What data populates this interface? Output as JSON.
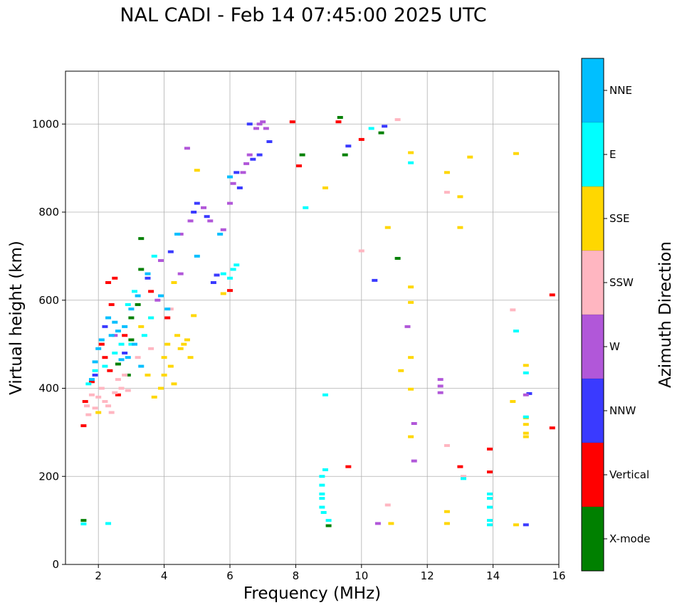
{
  "chart_data": {
    "type": "scatter",
    "title": "NAL CADI - Feb 14 07:45:00 2025 UTC",
    "xlabel": "Frequency (MHz)",
    "ylabel": "Virtual height (km)",
    "xlim": [
      1,
      16
    ],
    "ylim": [
      0,
      1120
    ],
    "xticks": [
      2,
      4,
      6,
      8,
      10,
      12,
      14,
      16
    ],
    "yticks": [
      0,
      200,
      400,
      600,
      800,
      1000
    ],
    "grid": true,
    "colorbar": {
      "label": "Azimuth Direction",
      "categories": [
        "X-mode",
        "Vertical",
        "NNW",
        "W",
        "SSW",
        "SSE",
        "E",
        "NNE"
      ],
      "colors": [
        "#008000",
        "#ff0000",
        "#3a3aff",
        "#b157d9",
        "#ffb6c1",
        "#ffd700",
        "#00ffff",
        "#00bfff"
      ]
    },
    "series": [
      {
        "name": "X-mode",
        "points": [
          [
            1.55,
            100
          ],
          [
            3.3,
            740
          ],
          [
            3.3,
            670
          ],
          [
            2.9,
            430
          ],
          [
            3.0,
            560
          ],
          [
            9.35,
            1015
          ],
          [
            10.6,
            980
          ],
          [
            11.1,
            695
          ],
          [
            9.0,
            88
          ],
          [
            9.5,
            930
          ],
          [
            8.2,
            930
          ],
          [
            3.0,
            510
          ],
          [
            2.6,
            455
          ],
          [
            3.2,
            590
          ]
        ]
      },
      {
        "name": "Vertical",
        "points": [
          [
            1.55,
            315
          ],
          [
            1.6,
            370
          ],
          [
            2.2,
            470
          ],
          [
            2.35,
            440
          ],
          [
            2.3,
            640
          ],
          [
            2.5,
            650
          ],
          [
            2.6,
            385
          ],
          [
            7.9,
            1005
          ],
          [
            9.3,
            1005
          ],
          [
            9.6,
            222
          ],
          [
            10.0,
            965
          ],
          [
            8.1,
            905
          ],
          [
            13.0,
            222
          ],
          [
            13.9,
            210
          ],
          [
            13.9,
            262
          ],
          [
            15.8,
            612
          ],
          [
            15.8,
            310
          ],
          [
            6.0,
            622
          ],
          [
            2.8,
            520
          ],
          [
            3.6,
            620
          ],
          [
            1.8,
            415
          ],
          [
            2.1,
            500
          ],
          [
            2.4,
            590
          ],
          [
            4.1,
            560
          ]
        ]
      },
      {
        "name": "NNW",
        "points": [
          [
            5.6,
            657
          ],
          [
            5.5,
            640
          ],
          [
            6.2,
            890
          ],
          [
            6.3,
            855
          ],
          [
            6.9,
            930
          ],
          [
            7.2,
            960
          ],
          [
            10.4,
            645
          ],
          [
            10.7,
            995
          ],
          [
            15.1,
            388
          ],
          [
            15.0,
            90
          ],
          [
            6.6,
            1000
          ],
          [
            4.9,
            800
          ],
          [
            5.3,
            790
          ],
          [
            4.2,
            710
          ],
          [
            3.5,
            650
          ],
          [
            2.8,
            480
          ],
          [
            2.2,
            540
          ],
          [
            5.0,
            820
          ],
          [
            6.7,
            920
          ],
          [
            9.6,
            950
          ],
          [
            1.9,
            430
          ]
        ]
      },
      {
        "name": "W",
        "points": [
          [
            6.6,
            930
          ],
          [
            6.5,
            910
          ],
          [
            6.8,
            990
          ],
          [
            7.0,
            1005
          ],
          [
            6.4,
            890
          ],
          [
            6.1,
            865
          ],
          [
            5.2,
            810
          ],
          [
            5.4,
            780
          ],
          [
            4.8,
            780
          ],
          [
            4.5,
            750
          ],
          [
            3.9,
            690
          ],
          [
            4.7,
            945
          ],
          [
            11.4,
            540
          ],
          [
            11.6,
            320
          ],
          [
            11.6,
            235
          ],
          [
            12.4,
            420
          ],
          [
            12.4,
            390
          ],
          [
            15.0,
            385
          ],
          [
            10.5,
            93
          ],
          [
            4.5,
            660
          ],
          [
            3.8,
            600
          ],
          [
            2.5,
            520
          ],
          [
            5.8,
            760
          ],
          [
            6.0,
            820
          ],
          [
            7.1,
            990
          ],
          [
            12.4,
            405
          ],
          [
            6.9,
            1000
          ]
        ]
      },
      {
        "name": "SSW",
        "points": [
          [
            2.0,
            380
          ],
          [
            2.2,
            370
          ],
          [
            2.5,
            390
          ],
          [
            1.8,
            385
          ],
          [
            2.7,
            400
          ],
          [
            2.9,
            395
          ],
          [
            1.9,
            355
          ],
          [
            2.3,
            360
          ],
          [
            2.6,
            420
          ],
          [
            1.7,
            340
          ],
          [
            11.1,
            1010
          ],
          [
            12.6,
            845
          ],
          [
            12.6,
            270
          ],
          [
            13.1,
            200
          ],
          [
            14.6,
            578
          ],
          [
            10.0,
            712
          ],
          [
            10.8,
            135
          ],
          [
            4.2,
            580
          ],
          [
            3.2,
            470
          ],
          [
            2.4,
            345
          ],
          [
            3.6,
            490
          ],
          [
            2.1,
            400
          ],
          [
            1.65,
            360
          ],
          [
            2.8,
            430
          ]
        ]
      },
      {
        "name": "SSE",
        "points": [
          [
            4.0,
            470
          ],
          [
            4.2,
            450
          ],
          [
            4.3,
            410
          ],
          [
            4.6,
            500
          ],
          [
            4.7,
            510
          ],
          [
            4.8,
            470
          ],
          [
            3.9,
            400
          ],
          [
            3.5,
            430
          ],
          [
            4.4,
            520
          ],
          [
            4.1,
            500
          ],
          [
            4.5,
            490
          ],
          [
            3.7,
            380
          ],
          [
            3.3,
            540
          ],
          [
            4.0,
            430
          ],
          [
            5.0,
            895
          ],
          [
            4.9,
            565
          ],
          [
            8.9,
            855
          ],
          [
            10.8,
            765
          ],
          [
            11.5,
            935
          ],
          [
            11.5,
            630
          ],
          [
            11.5,
            595
          ],
          [
            11.5,
            470
          ],
          [
            11.5,
            398
          ],
          [
            11.5,
            290
          ],
          [
            11.2,
            440
          ],
          [
            12.6,
            890
          ],
          [
            13.0,
            835
          ],
          [
            13.0,
            765
          ],
          [
            13.3,
            925
          ],
          [
            12.6,
            120
          ],
          [
            12.6,
            93
          ],
          [
            14.6,
            370
          ],
          [
            14.7,
            933
          ],
          [
            15.0,
            452
          ],
          [
            15.0,
            333
          ],
          [
            15.0,
            318
          ],
          [
            15.0,
            298
          ],
          [
            15.0,
            290
          ],
          [
            14.7,
            90
          ],
          [
            10.9,
            93
          ],
          [
            3.6,
            560
          ],
          [
            4.3,
            640
          ],
          [
            2.0,
            345
          ],
          [
            5.8,
            615
          ]
        ]
      },
      {
        "name": "E",
        "points": [
          [
            6.1,
            670
          ],
          [
            6.2,
            680
          ],
          [
            5.8,
            660
          ],
          [
            6.0,
            650
          ],
          [
            3.0,
            500
          ],
          [
            2.5,
            480
          ],
          [
            3.1,
            620
          ],
          [
            2.9,
            590
          ],
          [
            3.6,
            560
          ],
          [
            3.7,
            700
          ],
          [
            1.7,
            410
          ],
          [
            1.55,
            92
          ],
          [
            2.3,
            93
          ],
          [
            8.8,
            200
          ],
          [
            8.8,
            180
          ],
          [
            8.8,
            160
          ],
          [
            8.8,
            150
          ],
          [
            8.8,
            130
          ],
          [
            8.9,
            215
          ],
          [
            8.85,
            118
          ],
          [
            9.0,
            100
          ],
          [
            8.9,
            385
          ],
          [
            8.3,
            810
          ],
          [
            11.5,
            912
          ],
          [
            14.7,
            530
          ],
          [
            15.0,
            435
          ],
          [
            15.0,
            335
          ],
          [
            13.9,
            150
          ],
          [
            13.9,
            130
          ],
          [
            13.9,
            100
          ],
          [
            13.9,
            90
          ],
          [
            13.9,
            160
          ],
          [
            13.1,
            195
          ],
          [
            2.2,
            450
          ],
          [
            3.4,
            520
          ],
          [
            1.9,
            440
          ],
          [
            2.7,
            500
          ],
          [
            10.3,
            990
          ]
        ]
      },
      {
        "name": "NNE",
        "points": [
          [
            2.3,
            560
          ],
          [
            2.5,
            550
          ],
          [
            2.6,
            530
          ],
          [
            2.1,
            510
          ],
          [
            2.9,
            470
          ],
          [
            3.3,
            450
          ],
          [
            2.0,
            490
          ],
          [
            1.9,
            460
          ],
          [
            3.2,
            610
          ],
          [
            3.0,
            580
          ],
          [
            2.8,
            540
          ],
          [
            3.5,
            660
          ],
          [
            3.1,
            500
          ],
          [
            2.7,
            465
          ],
          [
            1.8,
            420
          ],
          [
            2.4,
            520
          ],
          [
            4.1,
            580
          ],
          [
            6.0,
            880
          ],
          [
            5.7,
            750
          ],
          [
            4.4,
            750
          ],
          [
            5.0,
            700
          ],
          [
            3.9,
            610
          ]
        ]
      }
    ]
  }
}
